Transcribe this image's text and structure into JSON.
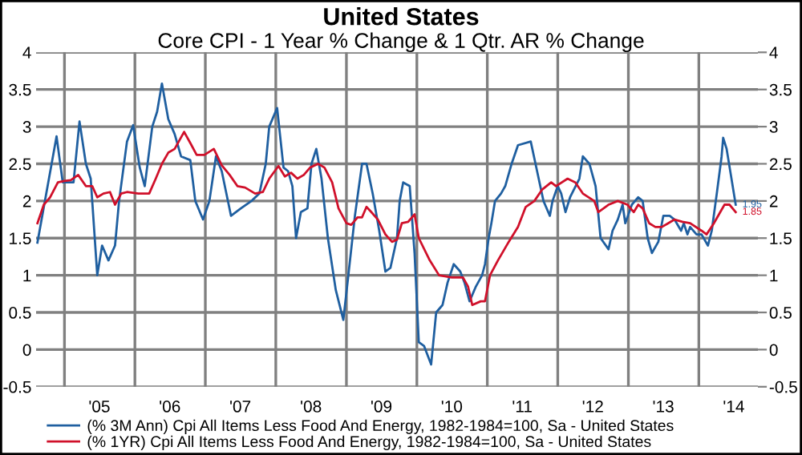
{
  "chart_data": {
    "type": "line",
    "title": "United States",
    "subtitle": "Core CPI - 1 Year % Change & 1 Qtr. AR % Change",
    "xlim": [
      "2004-08-07",
      "2014-11-03"
    ],
    "ylim": [
      -0.5,
      4
    ],
    "y2lim": [
      -0.5,
      4
    ],
    "xticks": [
      {
        "value": "2005-01-01",
        "label": null
      },
      {
        "value": "2005-07-01",
        "label": "'05"
      },
      {
        "value": "2006-01-01",
        "label": null
      },
      {
        "value": "2006-07-01",
        "label": "'06"
      },
      {
        "value": "2007-01-01",
        "label": null
      },
      {
        "value": "2007-07-01",
        "label": "'07"
      },
      {
        "value": "2008-01-01",
        "label": null
      },
      {
        "value": "2008-07-01",
        "label": "'08"
      },
      {
        "value": "2009-01-01",
        "label": null
      },
      {
        "value": "2009-07-01",
        "label": "'09"
      },
      {
        "value": "2010-01-01",
        "label": null
      },
      {
        "value": "2010-07-01",
        "label": "'10"
      },
      {
        "value": "2011-01-01",
        "label": null
      },
      {
        "value": "2011-07-01",
        "label": "'11"
      },
      {
        "value": "2012-01-01",
        "label": null
      },
      {
        "value": "2012-07-01",
        "label": "'12"
      },
      {
        "value": "2013-01-01",
        "label": null
      },
      {
        "value": "2013-07-01",
        "label": "'13"
      },
      {
        "value": "2014-01-01",
        "label": null
      },
      {
        "value": "2014-07-01",
        "label": "'14"
      }
    ],
    "yticks": [
      -0.5,
      0,
      0.5,
      1,
      1.5,
      2,
      2.5,
      3,
      3.5,
      4
    ],
    "y2ticks": [
      -0.5,
      0,
      0.5,
      1,
      1.5,
      2,
      2.5,
      3,
      3.5,
      4
    ],
    "grid": true,
    "legend": "bottom",
    "marker": "none",
    "line_style": "solid",
    "annotations": [
      {
        "text": "1.95",
        "x": "2014-07-11",
        "y": 1.95
      },
      {
        "text": "1.85",
        "x": "2014-07-11",
        "y": 1.85
      }
    ],
    "series": [
      {
        "name": "(% 3M Ann) Cpi All Items Less Food And Energy, 1982-1984=100, Sa - United States",
        "color": "#1f5fa0",
        "x": [
          "2004-08-14",
          "2004-11-21",
          "2004-12-23",
          "2005-02-17",
          "2005-03-20",
          "2005-04-22",
          "2005-05-17",
          "2005-06-20",
          "2005-07-15",
          "2005-08-17",
          "2005-09-20",
          "2005-10-11",
          "2005-11-21",
          "2005-12-23",
          "2006-01-26",
          "2006-02-21",
          "2006-04-01",
          "2006-04-26",
          "2006-05-21",
          "2006-06-23",
          "2006-07-26",
          "2006-08-28",
          "2006-10-15",
          "2006-11-10",
          "2006-12-20",
          "2007-01-22",
          "2007-02-25",
          "2007-03-27",
          "2007-05-14",
          "2007-07-04",
          "2007-08-28",
          "2007-10-08",
          "2007-11-10",
          "2007-11-28",
          "2008-01-08",
          "2008-02-10",
          "2008-03-05",
          "2008-03-27",
          "2008-04-15",
          "2008-05-10",
          "2008-06-13",
          "2008-07-04",
          "2008-07-29",
          "2008-08-25",
          "2008-09-27",
          "2008-11-07",
          "2008-12-16",
          "2009-01-11",
          "2009-02-14",
          "2009-03-23",
          "2009-04-15",
          "2009-05-17",
          "2009-06-20",
          "2009-07-22",
          "2009-08-17",
          "2009-09-20",
          "2009-10-04",
          "2009-10-22",
          "2009-11-25",
          "2009-12-20",
          "2010-01-11",
          "2010-02-07",
          "2010-03-16",
          "2010-04-11",
          "2010-05-14",
          "2010-06-09",
          "2010-07-11",
          "2010-08-14",
          "2010-09-05",
          "2010-10-01",
          "2010-11-03",
          "2010-12-05",
          "2010-12-20",
          "2011-01-08",
          "2011-01-22",
          "2011-02-10",
          "2011-03-13",
          "2011-04-04",
          "2011-05-07",
          "2011-06-09",
          "2011-08-14",
          "2011-09-16",
          "2011-10-19",
          "2011-11-21",
          "2011-12-05",
          "2012-01-01",
          "2012-01-19",
          "2012-02-10",
          "2012-03-05",
          "2012-04-22",
          "2012-05-10",
          "2012-06-13",
          "2012-07-15",
          "2012-08-10",
          "2012-09-20",
          "2012-10-11",
          "2012-11-07",
          "2012-12-02",
          "2012-12-16",
          "2013-01-19",
          "2013-02-21",
          "2013-03-16",
          "2013-04-11",
          "2013-05-03",
          "2013-06-05",
          "2013-07-01",
          "2013-08-03",
          "2013-08-28",
          "2013-10-01",
          "2013-10-15",
          "2013-11-03",
          "2013-11-17",
          "2013-12-20",
          "2014-01-15",
          "2014-02-17",
          "2014-03-09",
          "2014-04-04",
          "2014-04-29",
          "2014-05-07",
          "2014-05-25",
          "2014-06-16",
          "2014-07-11"
        ],
        "values": [
          1.44,
          2.87,
          2.25,
          2.25,
          3.07,
          2.5,
          2.3,
          1.0,
          1.4,
          1.2,
          1.4,
          2.0,
          2.8,
          3.02,
          2.45,
          2.2,
          3.0,
          3.2,
          3.58,
          3.1,
          2.9,
          2.6,
          2.55,
          2.0,
          1.75,
          2.0,
          2.6,
          2.4,
          1.8,
          1.9,
          2.0,
          2.1,
          2.5,
          3.0,
          3.25,
          2.45,
          2.4,
          2.2,
          1.5,
          1.85,
          1.9,
          2.5,
          2.7,
          2.3,
          1.5,
          0.8,
          0.4,
          1.0,
          1.8,
          2.5,
          2.5,
          2.1,
          1.6,
          1.05,
          1.1,
          1.5,
          2.0,
          2.25,
          2.2,
          1.3,
          0.1,
          0.05,
          -0.2,
          0.5,
          0.6,
          0.9,
          1.15,
          1.05,
          0.9,
          0.65,
          0.85,
          1.0,
          1.15,
          1.5,
          1.7,
          2.0,
          2.1,
          2.2,
          2.5,
          2.75,
          2.8,
          2.4,
          2.0,
          1.8,
          2.0,
          2.2,
          2.1,
          1.85,
          2.05,
          2.3,
          2.6,
          2.5,
          2.2,
          1.5,
          1.35,
          1.6,
          1.75,
          1.95,
          1.7,
          1.95,
          2.05,
          2.0,
          1.5,
          1.3,
          1.45,
          1.8,
          1.8,
          1.75,
          1.6,
          1.7,
          1.55,
          1.65,
          1.55,
          1.55,
          1.4,
          1.6,
          2.1,
          2.6,
          2.85,
          2.7,
          2.35,
          1.95
        ]
      },
      {
        "name": "(% 1YR) Cpi All Items Less Food And Energy, 1982-1984=100, Sa - United States",
        "color": "#d0102a",
        "x": [
          "2004-08-14",
          "2004-09-16",
          "2004-10-19",
          "2004-11-28",
          "2005-01-01",
          "2005-02-03",
          "2005-03-13",
          "2005-04-22",
          "2005-05-25",
          "2005-06-20",
          "2005-07-22",
          "2005-08-25",
          "2005-09-20",
          "2005-10-22",
          "2005-11-21",
          "2006-01-19",
          "2006-03-16",
          "2006-04-19",
          "2006-05-21",
          "2006-06-23",
          "2006-07-26",
          "2006-09-13",
          "2006-10-15",
          "2006-11-17",
          "2006-12-27",
          "2007-02-14",
          "2007-03-27",
          "2007-05-07",
          "2007-06-16",
          "2007-07-26",
          "2007-09-16",
          "2007-10-26",
          "2007-11-28",
          "2008-01-15",
          "2008-02-17",
          "2008-03-20",
          "2008-04-22",
          "2008-05-25",
          "2008-06-27",
          "2008-08-07",
          "2008-09-09",
          "2008-10-19",
          "2008-11-21",
          "2009-01-01",
          "2009-01-26",
          "2009-02-28",
          "2009-03-23",
          "2009-04-15",
          "2009-05-10",
          "2009-06-13",
          "2009-07-22",
          "2009-08-25",
          "2009-09-20",
          "2009-10-15",
          "2009-11-17",
          "2009-12-20",
          "2010-01-11",
          "2010-03-09",
          "2010-04-26",
          "2010-07-01",
          "2010-08-28",
          "2010-09-23",
          "2010-10-15",
          "2010-11-28",
          "2010-12-20",
          "2011-01-15",
          "2011-02-25",
          "2011-04-22",
          "2011-06-09",
          "2011-07-19",
          "2011-09-02",
          "2011-10-11",
          "2011-11-28",
          "2011-12-23",
          "2012-02-21",
          "2012-04-01",
          "2012-05-10",
          "2012-07-08",
          "2012-07-29",
          "2012-09-20",
          "2012-11-07",
          "2012-12-27",
          "2013-01-29",
          "2013-02-21",
          "2013-03-16",
          "2013-04-19",
          "2013-05-21",
          "2013-06-23",
          "2013-07-26",
          "2013-08-28",
          "2013-10-08",
          "2013-11-17",
          "2014-01-15",
          "2014-02-10",
          "2014-03-20",
          "2014-04-22",
          "2014-05-14",
          "2014-06-09",
          "2014-07-11"
        ],
        "values": [
          1.7,
          1.95,
          2.05,
          2.25,
          2.27,
          2.28,
          2.35,
          2.2,
          2.2,
          2.05,
          2.1,
          2.12,
          1.95,
          2.1,
          2.12,
          2.1,
          2.1,
          2.3,
          2.5,
          2.65,
          2.7,
          2.93,
          2.78,
          2.62,
          2.62,
          2.7,
          2.48,
          2.35,
          2.2,
          2.18,
          2.1,
          2.12,
          2.3,
          2.47,
          2.33,
          2.38,
          2.3,
          2.35,
          2.45,
          2.5,
          2.45,
          2.25,
          1.9,
          1.7,
          1.68,
          1.78,
          1.78,
          1.92,
          1.85,
          1.75,
          1.55,
          1.45,
          1.48,
          1.7,
          1.72,
          1.82,
          1.5,
          1.2,
          1.0,
          0.97,
          0.97,
          0.85,
          0.6,
          0.65,
          0.65,
          1.0,
          1.2,
          1.45,
          1.65,
          1.92,
          2.0,
          2.15,
          2.25,
          2.2,
          2.3,
          2.25,
          2.1,
          2.0,
          1.85,
          1.95,
          2.0,
          1.95,
          1.85,
          1.95,
          1.9,
          1.7,
          1.65,
          1.65,
          1.7,
          1.75,
          1.72,
          1.7,
          1.6,
          1.55,
          1.7,
          1.85,
          1.95,
          1.95,
          1.85
        ]
      }
    ]
  }
}
